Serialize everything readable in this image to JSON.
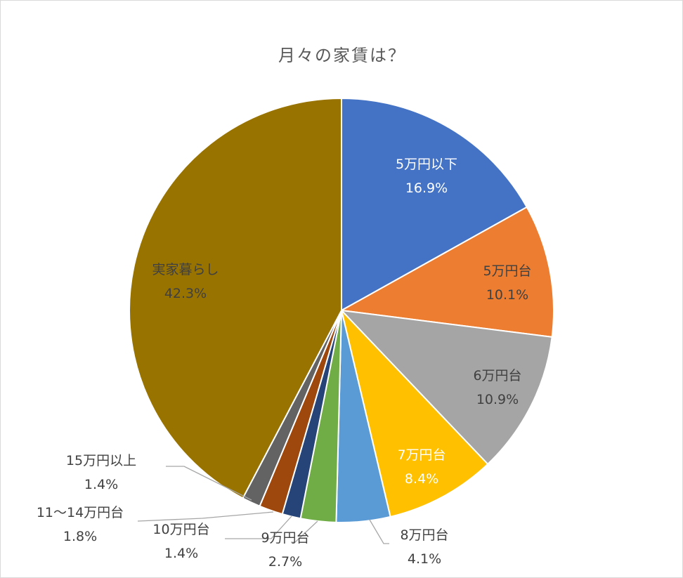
{
  "chart_data": {
    "type": "pie",
    "title": "月々の家賃は？",
    "slices": [
      {
        "label": "5万円以下",
        "value": 16.9,
        "pct_label": "16.9%",
        "color": "#4472c4",
        "label_color": "#ffffff"
      },
      {
        "label": "5万円台",
        "value": 10.1,
        "pct_label": "10.1%",
        "color": "#ed7d31",
        "label_color": "#404040"
      },
      {
        "label": "6万円台",
        "value": 10.9,
        "pct_label": "10.9%",
        "color": "#a5a5a5",
        "label_color": "#404040"
      },
      {
        "label": "7万円台",
        "value": 8.4,
        "pct_label": "8.4%",
        "color": "#ffc000",
        "label_color": "#ffffff"
      },
      {
        "label": "8万円台",
        "value": 4.1,
        "pct_label": "4.1%",
        "color": "#5b9bd5",
        "label_color": "#404040"
      },
      {
        "label": "9万円台",
        "value": 2.7,
        "pct_label": "2.7%",
        "color": "#70ad47",
        "label_color": "#404040"
      },
      {
        "label": "10万円台",
        "value": 1.4,
        "pct_label": "1.4%",
        "color": "#264478",
        "label_color": "#404040"
      },
      {
        "label": "11〜14万円台",
        "value": 1.8,
        "pct_label": "1.8%",
        "color": "#9e480e",
        "label_color": "#404040"
      },
      {
        "label": "15万円以上",
        "value": 1.4,
        "pct_label": "1.4%",
        "color": "#636363",
        "label_color": "#404040"
      },
      {
        "label": "実家暮らし",
        "value": 42.3,
        "pct_label": "42.3%",
        "color": "#997300",
        "label_color": "#404040"
      }
    ]
  }
}
